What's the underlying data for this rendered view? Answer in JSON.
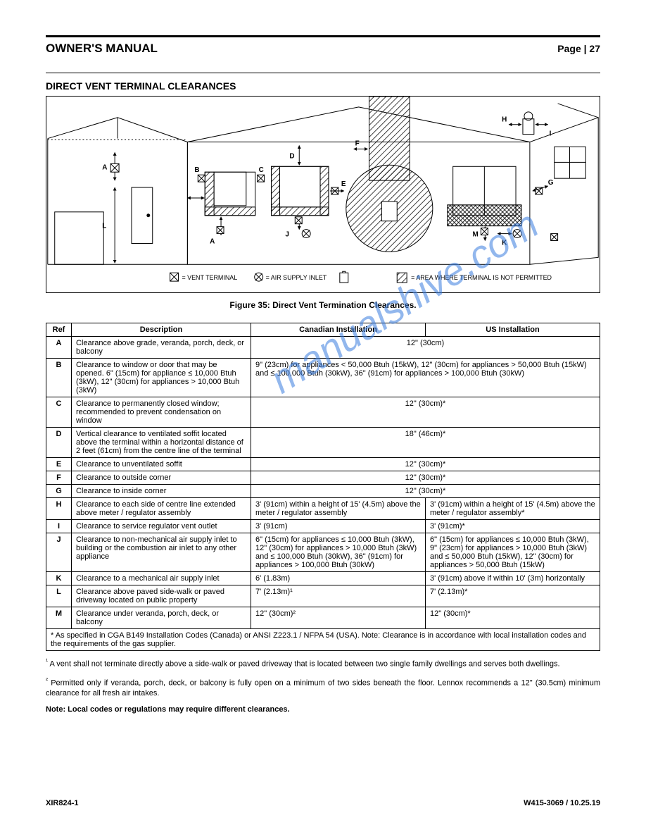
{
  "page": {
    "title": "OWNER'S MANUAL",
    "page_label": "Page | 27",
    "section_heading": "DIRECT VENT TERMINAL CLEARANCES",
    "figure_caption": "Figure 35: Direct Vent Termination Clearances.",
    "footer_left": "XIR824-1",
    "footer_right": "W415-3069 / 10.25.19",
    "note1_label": "¹",
    "note1": " A vent shall not terminate directly above a side-walk or paved driveway that is located between two single family dwellings and serves both dwellings.",
    "note2_label": "²",
    "note2": " Permitted only if veranda, porch, deck, or balcony is fully open on a minimum of two sides beneath the floor. Lennox recommends a 12\" (30.5cm) minimum clearance for all fresh air intakes.",
    "final_note": "Note: Local codes or regulations may require different clearances."
  },
  "diagram": {
    "labels": {
      "A": "A",
      "B": "B",
      "C": "C",
      "D": "D",
      "E": "E",
      "F": "F",
      "G": "G",
      "H": "H",
      "I": "I",
      "J": "J",
      "K": "K",
      "L": "L",
      "M": "M"
    },
    "legend": {
      "vent_terminal": "= VENT TERMINAL",
      "air_supply_inlet": "= AIR SUPPLY INLET",
      "restricted": "= AREA WHERE TERMINAL IS NOT PERMITTED"
    },
    "colors": {
      "stroke": "#000000",
      "hatch": "#000000",
      "background": "#ffffff"
    }
  },
  "table": {
    "header": {
      "ref": "Ref",
      "desc": "Description",
      "can": "Canadian Installation",
      "us": "US Installation"
    },
    "rows": [
      {
        "ref": "A",
        "desc": "Clearance above grade, veranda, porch, deck, or balcony",
        "can": "12\" (30cm)",
        "us": "12\" (30cm)",
        "merge": true
      },
      {
        "ref": "B",
        "desc": "Clearance to window or door that may be opened. 6\" (15cm) for appliance ≤ 10,000 Btuh (3kW), 12\" (30cm) for appliances > 10,000 Btuh (3kW)",
        "can_us_merged": "9\" (23cm) for appliances < 50,000 Btuh (15kW), 12\" (30cm) for appliances > 50,000 Btuh (15kW) and ≤ 100,000 Btuh (30kW), 36\" (91cm) for appliances > 100,000 Btuh (30kW)"
      },
      {
        "ref": "C",
        "desc": "Clearance to permanently closed window; recommended to prevent condensation on window",
        "can": "12\" (30cm)*",
        "us": "12\" (30cm)*",
        "merge": true
      },
      {
        "ref": "D",
        "desc": "Vertical clearance to ventilated soffit located above the terminal within a horizontal distance of 2 feet (61cm) from the centre line of the terminal",
        "can": "18\" (46cm)*",
        "us": "18\" (46cm)*",
        "merge": true
      },
      {
        "ref": "E",
        "desc": "Clearance to unventilated soffit",
        "can": "12\" (30cm)*",
        "us": "12\" (30cm)*",
        "merge": true
      },
      {
        "ref": "F",
        "desc": "Clearance to outside corner",
        "can": "12\" (30cm)*",
        "us": "12\" (30cm)*",
        "merge": true
      },
      {
        "ref": "G",
        "desc": "Clearance to inside corner",
        "can": "12\" (30cm)*",
        "us": "12\" (30cm)*",
        "merge": true
      },
      {
        "ref": "H",
        "desc": "Clearance to each side of centre line extended above meter / regulator assembly",
        "can": "3' (91cm) within a height of 15' (4.5m) above the meter / regulator assembly",
        "us": "3' (91cm) within a height of 15' (4.5m) above the meter / regulator assembly*"
      },
      {
        "ref": "I",
        "desc": "Clearance to service regulator vent outlet",
        "can": "3' (91cm)",
        "us": "3' (91cm)*"
      },
      {
        "ref": "J",
        "desc": "Clearance to non-mechanical air supply inlet to building or the combustion air inlet to any other appliance",
        "can": "6\" (15cm) for appliances ≤ 10,000 Btuh (3kW), 12\" (30cm) for appliances > 10,000 Btuh (3kW) and ≤ 100,000 Btuh (30kW), 36\" (91cm) for appliances > 100,000 Btuh (30kW)",
        "us": "6\" (15cm) for appliances ≤ 10,000 Btuh (3kW), 9\" (23cm) for appliances > 10,000 Btuh (3kW) and ≤ 50,000 Btuh (15kW), 12\" (30cm) for appliances > 50,000 Btuh (15kW)"
      },
      {
        "ref": "K",
        "desc": "Clearance to a mechanical air supply inlet",
        "can": "6' (1.83m)",
        "us": "3' (91cm) above if within 10' (3m) horizontally"
      },
      {
        "ref": "L",
        "desc": "Clearance above paved side-walk or paved driveway located on public property",
        "can": "7' (2.13m)¹",
        "us": "7' (2.13m)*"
      },
      {
        "ref": "M",
        "desc": "Clearance under veranda, porch, deck, or balcony",
        "can": "12\" (30cm)²",
        "us": "12\" (30cm)*"
      }
    ],
    "star_row": "* As specified in CGA B149 Installation Codes (Canada) or ANSI Z223.1 / NFPA 54 (USA). Note: Clearance is in accordance with local installation codes and the requirements of the gas supplier."
  },
  "watermark": {
    "text": "manualshive.com",
    "color": "#3a7ee0",
    "opacity": 0.55,
    "fontsize": 56
  }
}
